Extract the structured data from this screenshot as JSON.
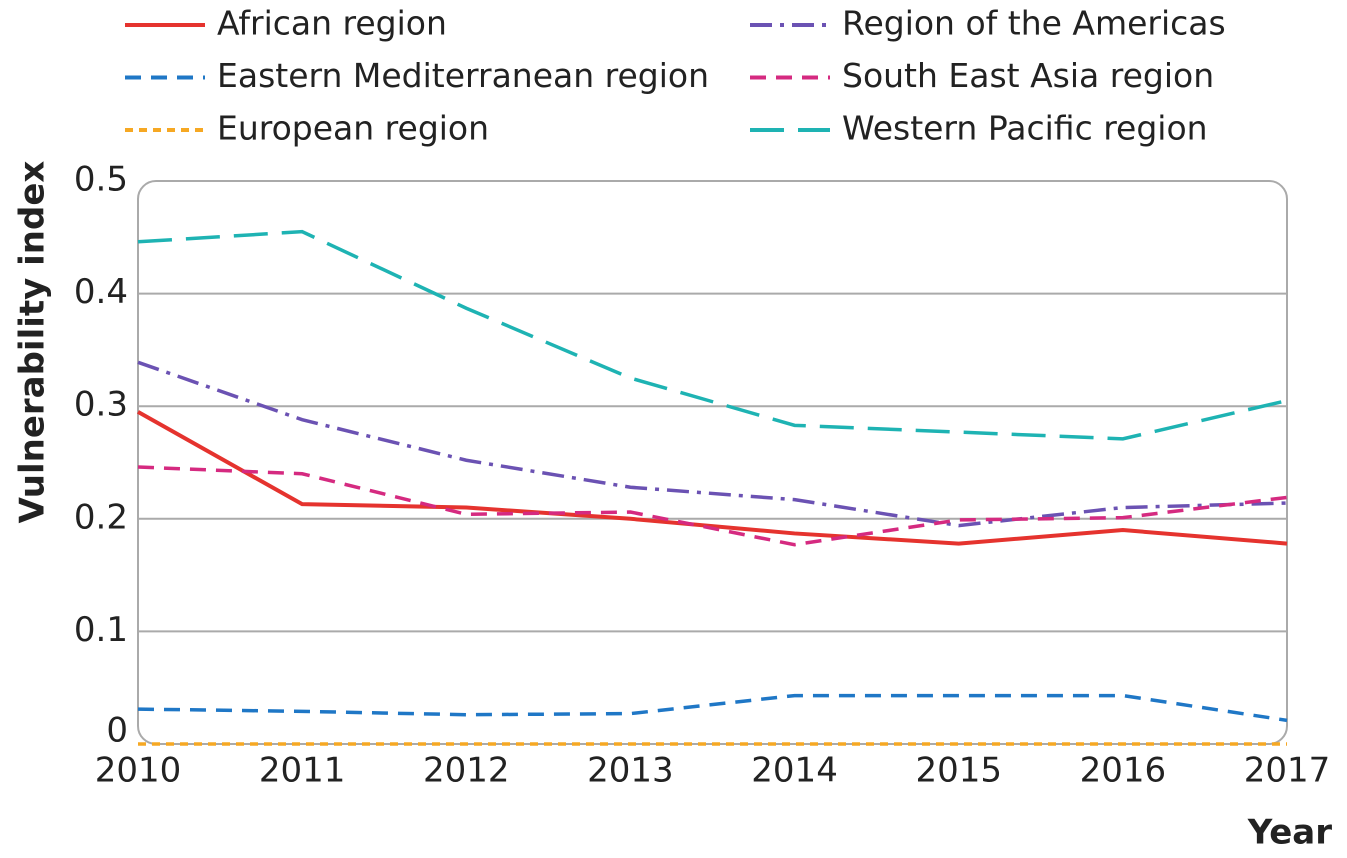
{
  "chart_data": {
    "type": "line",
    "x_label": "Year",
    "y_label": "Vulnerability index",
    "x": [
      2010,
      2011,
      2012,
      2013,
      2014,
      2015,
      2016,
      2017
    ],
    "xlim": [
      2010,
      2017
    ],
    "xticks": [
      2010,
      2011,
      2012,
      2013,
      2014,
      2015,
      2016,
      2017
    ],
    "ylim": [
      0,
      0.5
    ],
    "yticks": [
      0,
      0.1,
      0.2,
      0.3,
      0.4,
      0.5
    ],
    "grid": true,
    "series": [
      {
        "name": "African region",
        "color": "#e5332e",
        "dash": "solid",
        "values": [
          0.295,
          0.213,
          0.21,
          0.2,
          0.187,
          0.178,
          0.19,
          0.178
        ]
      },
      {
        "name": "Eastern Mediterranean region",
        "color": "#1f77c6",
        "dash": "dashed",
        "values": [
          0.031,
          0.029,
          0.026,
          0.027,
          0.043,
          0.043,
          0.043,
          0.021
        ]
      },
      {
        "name": "European region",
        "color": "#f6a823",
        "dash": "dotted",
        "values": [
          0,
          0,
          0,
          0,
          0,
          0,
          0,
          0
        ]
      },
      {
        "name": "Region of the Americas",
        "color": "#6b52b3",
        "dash": "dashdot",
        "values": [
          0.339,
          0.288,
          0.252,
          0.228,
          0.217,
          0.194,
          0.21,
          0.214
        ]
      },
      {
        "name": "South East Asia region",
        "color": "#d52a80",
        "dash": "dashed",
        "values": [
          0.246,
          0.24,
          0.204,
          0.206,
          0.177,
          0.199,
          0.201,
          0.219
        ]
      },
      {
        "name": "Western Pacific region",
        "color": "#1eb3b3",
        "dash": "longdash",
        "values": [
          0.446,
          0.455,
          0.387,
          0.325,
          0.283,
          0.277,
          0.271,
          0.305
        ]
      }
    ]
  }
}
